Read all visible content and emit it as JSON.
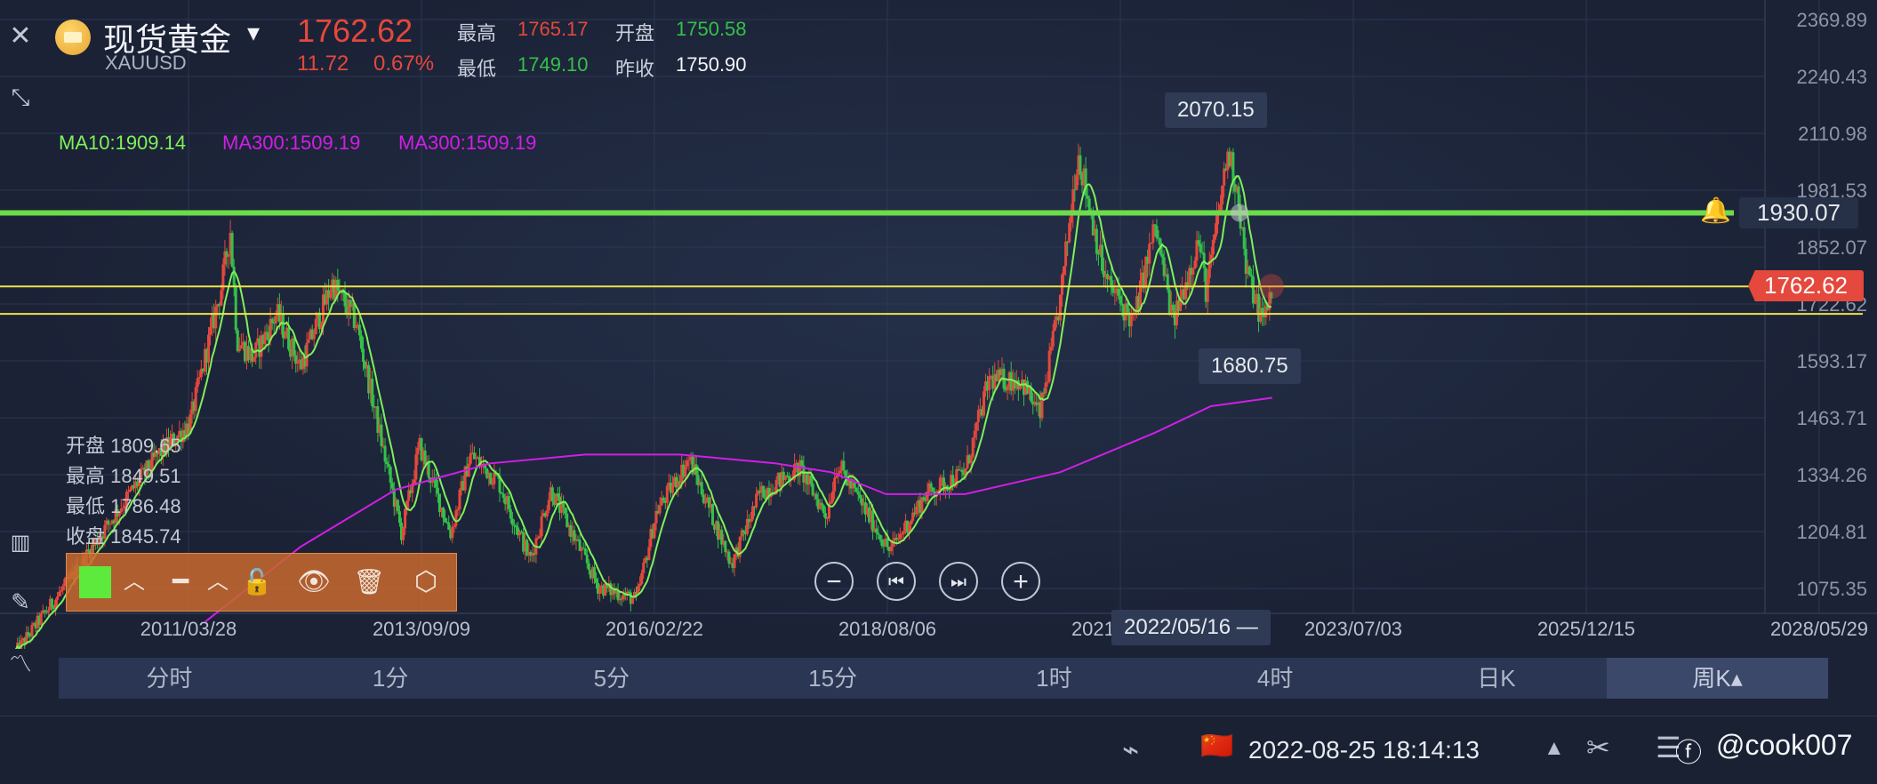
{
  "header": {
    "instrument_name": "现货黄金",
    "dropdown_glyph": "▾",
    "symbol": "XAUUSD",
    "last_price": "1762.62",
    "change": "11.72",
    "change_pct": "0.67%",
    "high_label": "最高",
    "high_value": "1765.17",
    "low_label": "最低",
    "low_value": "1749.10",
    "open_label": "开盘",
    "open_value": "1750.58",
    "prev_close_label": "昨收",
    "prev_close_value": "1750.90"
  },
  "ma_legend": {
    "ma10": "MA10:1909.14",
    "ma300_a": "MA300:1509.19",
    "ma300_b": "MA300:1509.19"
  },
  "ohlc_overlay": {
    "open": "开盘 1809.65",
    "high": "最高 1849.51",
    "low": "最低 1786.48",
    "close": "收盘 1845.74"
  },
  "price_tags": {
    "peak_2020": "2070.15",
    "trough_2022": "1680.75",
    "green_line": "1930.07",
    "current": "1762.62",
    "crosshair_date": "2022/05/16",
    "crosshair_suffix": "—"
  },
  "timeframes": [
    "分时",
    "1分",
    "5分",
    "15分",
    "1时",
    "4时",
    "日K",
    "周K▴"
  ],
  "status_bar": {
    "datetime": "2022-08-25 18:14:13",
    "flag": "🇨🇳",
    "watermark": "@cook007"
  },
  "colors": {
    "up": "#e5483c",
    "down": "#35c04a",
    "ma10": "#7ff05a",
    "ma300": "#d11ee6",
    "support": "#f0e24a",
    "resistance": "#6ddc4a",
    "price_tag": "#e5483c"
  },
  "chart_data": {
    "type": "candlestick",
    "title": "",
    "xlabel": "",
    "ylabel": "",
    "y_ticks": [
      2369.89,
      2240.43,
      2110.98,
      1981.53,
      1852.07,
      1722.62,
      1593.17,
      1463.71,
      1334.26,
      1204.81,
      1075.35
    ],
    "x_ticks": [
      "2011/03/28",
      "2013/09/09",
      "2016/02/22",
      "2018/08/06",
      "2021/01/18",
      "2023/07/03",
      "2025/12/15",
      "2028/05/29"
    ],
    "ylim": [
      1000,
      2420
    ],
    "horizontal_lines": [
      {
        "name": "green_resistance",
        "value": 1930.07
      },
      {
        "name": "yellow_upper",
        "value": 1762.62
      },
      {
        "name": "yellow_lower",
        "value": 1700
      }
    ],
    "close_path": [
      [
        "2009/06/01",
        930
      ],
      [
        "2010/01/01",
        1100
      ],
      [
        "2010/06/01",
        1230
      ],
      [
        "2010/12/01",
        1380
      ],
      [
        "2011/04/01",
        1450
      ],
      [
        "2011/08/01",
        1760
      ],
      [
        "2011/09/05",
        1890
      ],
      [
        "2011/10/01",
        1640
      ],
      [
        "2011/12/01",
        1600
      ],
      [
        "2012/03/01",
        1700
      ],
      [
        "2012/06/01",
        1580
      ],
      [
        "2012/10/01",
        1770
      ],
      [
        "2013/01/01",
        1680
      ],
      [
        "2013/04/15",
        1390
      ],
      [
        "2013/06/25",
        1200
      ],
      [
        "2013/09/01",
        1400
      ],
      [
        "2013/12/31",
        1200
      ],
      [
        "2014/03/15",
        1380
      ],
      [
        "2014/07/01",
        1320
      ],
      [
        "2014/11/01",
        1140
      ],
      [
        "2015/01/20",
        1300
      ],
      [
        "2015/07/20",
        1080
      ],
      [
        "2015/12/15",
        1050
      ],
      [
        "2016/03/01",
        1250
      ],
      [
        "2016/07/05",
        1370
      ],
      [
        "2016/12/15",
        1130
      ],
      [
        "2017/04/01",
        1290
      ],
      [
        "2017/09/01",
        1350
      ],
      [
        "2017/12/15",
        1240
      ],
      [
        "2018/01/25",
        1360
      ],
      [
        "2018/08/15",
        1160
      ],
      [
        "2019/01/01",
        1290
      ],
      [
        "2019/06/01",
        1340
      ],
      [
        "2019/09/01",
        1550
      ],
      [
        "2020/01/01",
        1550
      ],
      [
        "2020/03/15",
        1470
      ],
      [
        "2020/06/01",
        1730
      ],
      [
        "2020/08/07",
        2070
      ],
      [
        "2020/11/20",
        1780
      ],
      [
        "2021/03/08",
        1680
      ],
      [
        "2021/06/01",
        1900
      ],
      [
        "2021/08/09",
        1680
      ],
      [
        "2021/11/15",
        1870
      ],
      [
        "2021/12/15",
        1750
      ],
      [
        "2022/03/08",
        2070
      ],
      [
        "2022/04/15",
        1980
      ],
      [
        "2022/05/16",
        1800
      ],
      [
        "2022/07/21",
        1680
      ],
      [
        "2022/08/25",
        1762.62
      ]
    ],
    "ma300_path": [
      [
        "2011/06/01",
        1000
      ],
      [
        "2012/06/01",
        1170
      ],
      [
        "2013/06/01",
        1300
      ],
      [
        "2014/06/01",
        1360
      ],
      [
        "2015/06/01",
        1380
      ],
      [
        "2016/06/01",
        1380
      ],
      [
        "2017/06/01",
        1360
      ],
      [
        "2018/01/01",
        1340
      ],
      [
        "2018/08/01",
        1290
      ],
      [
        "2019/06/01",
        1290
      ],
      [
        "2020/06/01",
        1340
      ],
      [
        "2021/06/01",
        1430
      ],
      [
        "2022/01/01",
        1490
      ],
      [
        "2022/08/25",
        1509.19
      ]
    ]
  }
}
